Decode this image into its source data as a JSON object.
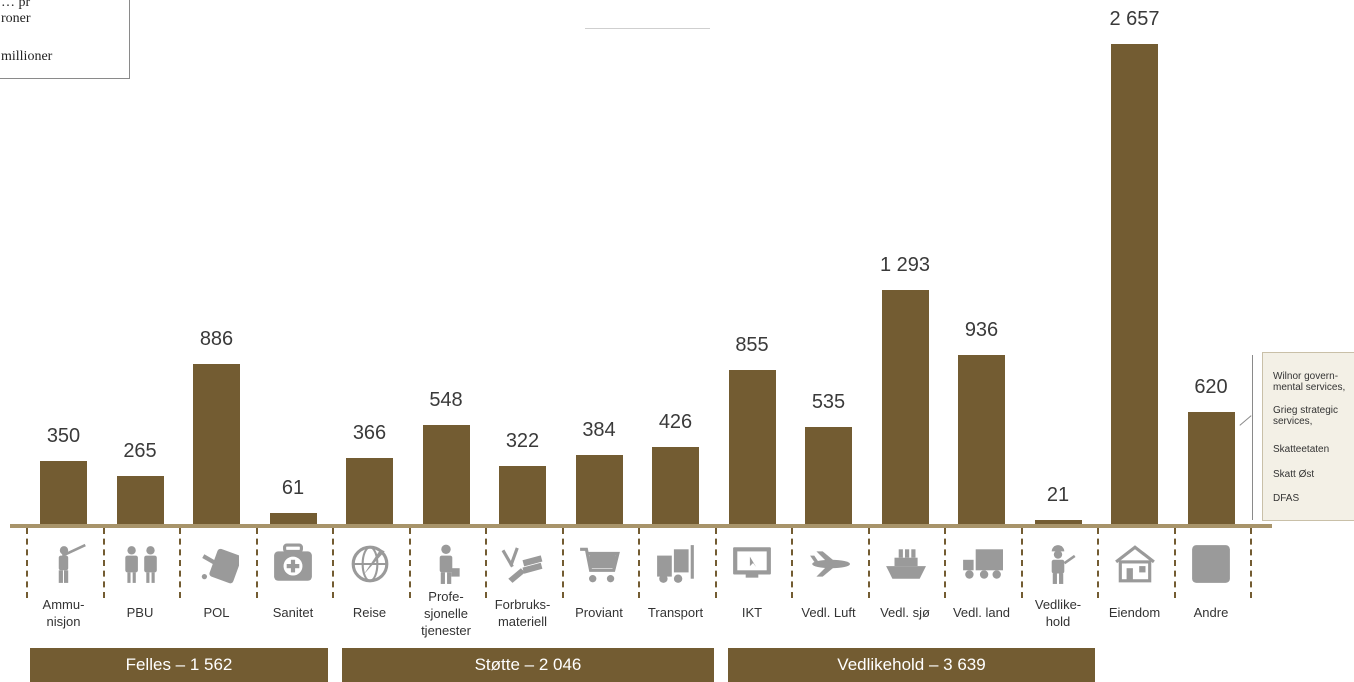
{
  "legend": {
    "lines": [
      "… pr",
      "roner",
      "millioner"
    ]
  },
  "chart_data": {
    "type": "bar",
    "categories": [
      "Ammunisjon",
      "PBU",
      "POL",
      "Sanitet",
      "Reise",
      "Profesjonelle tjenester",
      "Forbruksmateriell",
      "Proviant",
      "Transport",
      "IKT",
      "Vedl. Luft",
      "Vedl. sjø",
      "Vedl. land",
      "Vedlikehold",
      "Eiendom",
      "Andre"
    ],
    "category_labels": [
      [
        "Ammu-",
        "nisjon"
      ],
      [
        "PBU"
      ],
      [
        "POL"
      ],
      [
        "Sanitet"
      ],
      [
        "Reise"
      ],
      [
        "Profe-",
        "sjonelle",
        "tjenester"
      ],
      [
        "Forbruks-",
        "materiell"
      ],
      [
        "Proviant"
      ],
      [
        "Transport"
      ],
      [
        "IKT"
      ],
      [
        "Vedl. Luft"
      ],
      [
        "Vedl. sjø"
      ],
      [
        "Vedl. land"
      ],
      [
        "Vedlike-",
        "hold"
      ],
      [
        "Eiendom"
      ],
      [
        "Andre"
      ]
    ],
    "icons": [
      "soldier-rifle-icon",
      "uniform-icon",
      "fuel-can-icon",
      "first-aid-kit-icon",
      "globe-plane-icon",
      "businessman-icon",
      "tools-books-icon",
      "shopping-cart-icon",
      "forklift-icon",
      "computer-monitor-icon",
      "aircraft-icon",
      "ship-icon",
      "truck-icon",
      "mechanic-icon",
      "house-icon",
      "gray-square-icon"
    ],
    "values": [
      350,
      265,
      886,
      61,
      366,
      548,
      322,
      384,
      426,
      855,
      535,
      1293,
      936,
      21,
      2657,
      620
    ],
    "value_labels": [
      "350",
      "265",
      "886",
      "61",
      "366",
      "548",
      "322",
      "384",
      "426",
      "855",
      "535",
      "1 293",
      "936",
      "21",
      "2 657",
      "620"
    ],
    "ylim": [
      0,
      2657
    ],
    "groups": [
      {
        "label": "Felles – 1 562",
        "from": 0,
        "to": 3
      },
      {
        "label": "Støtte – 2 046",
        "from": 4,
        "to": 8
      },
      {
        "label": "Vedlikehold – 3 639",
        "from": 9,
        "to": 13
      }
    ],
    "annotation": {
      "target": "Andre",
      "lines": [
        "Wilnor govern-",
        "mental services,",
        "Grieg strategic",
        "services,",
        "Skatteetaten",
        "Skatt Øst",
        "DFAS"
      ]
    }
  },
  "colors": {
    "bar": "#735c32",
    "baseline": "#a8946a",
    "icon": "#9a9a9a",
    "note_bg": "#f3f0e6"
  }
}
